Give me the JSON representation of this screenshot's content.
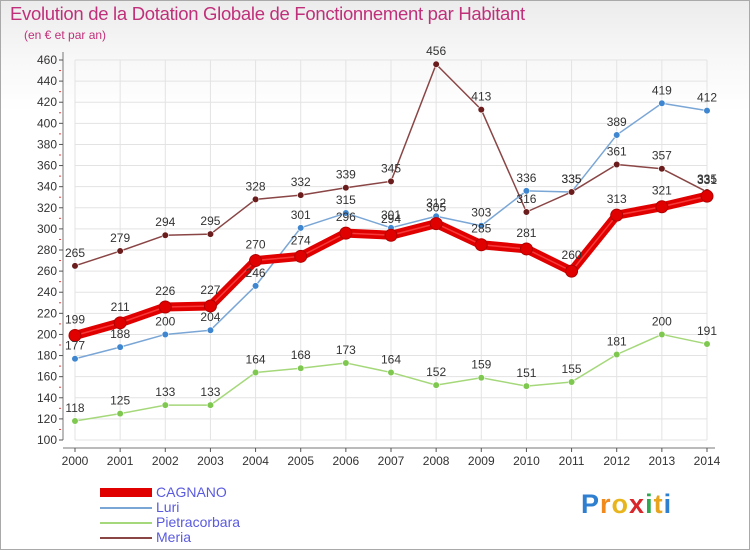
{
  "title": "Evolution de la Dotation Globale de Fonctionnement par Habitant",
  "subtitle": "(en € et par an)",
  "logo": {
    "text": "Proxiti",
    "letters": [
      "P",
      "r",
      "o",
      "x",
      "i",
      "t",
      "i"
    ],
    "letter_colors": [
      "#2f7fd0",
      "#f08a1c",
      "#e8b51c",
      "#d8262a",
      "#2fa84f",
      "#e8a41c",
      "#2f7fd0"
    ]
  },
  "chart_data": {
    "type": "line",
    "title": "Evolution de la Dotation Globale de Fonctionnement par Habitant",
    "subtitle": "(en € et par an)",
    "x": [
      "2000",
      "2001",
      "2002",
      "2003",
      "2004",
      "2005",
      "2006",
      "2007",
      "2008",
      "2009",
      "2010",
      "2011",
      "2012",
      "2013",
      "2014"
    ],
    "ylim": [
      100,
      460
    ],
    "yticks": [
      100,
      120,
      140,
      160,
      180,
      200,
      220,
      240,
      260,
      280,
      300,
      320,
      340,
      360,
      380,
      400,
      420,
      440,
      460
    ],
    "grid": true,
    "legend_position": "bottom-left",
    "series": [
      {
        "name": "CAGNANO",
        "color": "#e00000",
        "marker_color": "#e00000",
        "thick": true,
        "values": [
          199,
          211,
          226,
          227,
          270,
          274,
          296,
          294,
          305,
          285,
          281,
          260,
          313,
          321,
          331
        ]
      },
      {
        "name": "Luri",
        "color": "#7aa6d6",
        "marker_color": "#3e86d0",
        "thick": false,
        "values": [
          177,
          188,
          200,
          204,
          246,
          301,
          315,
          301,
          312,
          303,
          336,
          335,
          389,
          419,
          412
        ]
      },
      {
        "name": "Pietracorbara",
        "color": "#a5d87a",
        "marker_color": "#7ec850",
        "thick": false,
        "values": [
          118,
          125,
          133,
          133,
          164,
          168,
          173,
          164,
          152,
          159,
          151,
          155,
          181,
          200,
          191
        ]
      },
      {
        "name": "Meria",
        "color": "#8a4545",
        "marker_color": "#6b1d1d",
        "thick": false,
        "values": [
          265,
          279,
          294,
          295,
          328,
          332,
          339,
          345,
          456,
          413,
          316,
          335,
          361,
          357,
          335
        ]
      }
    ]
  }
}
